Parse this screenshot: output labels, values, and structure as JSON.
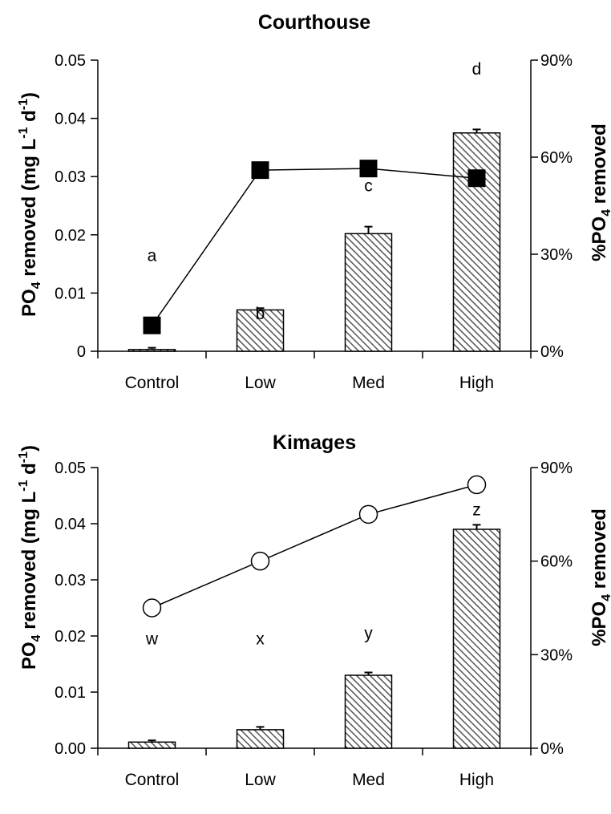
{
  "chart_data": [
    {
      "type": "bar",
      "title": "Courthouse",
      "categories": [
        "Control",
        "Low",
        "Med",
        "High"
      ],
      "ylabel_left": "PO4 removed (mg L-1 d-1)",
      "ylabel_left_parts": {
        "a": "PO",
        "sub": "4",
        "b": " removed (mg L",
        "sup1": "-1",
        "c": " d",
        "sup2": "-1",
        "d": ")"
      },
      "ylabel_right": "%PO4 removed",
      "ylabel_right_parts": {
        "a": "%PO",
        "sub": "4",
        "b": " removed"
      },
      "ylim_left": [
        0,
        0.05
      ],
      "yticks_left": [
        "0",
        "0.01",
        "0.02",
        "0.03",
        "0.04",
        "0.05"
      ],
      "ylim_right": [
        0,
        90
      ],
      "yticks_right": [
        "0%",
        "30%",
        "60%",
        "90%"
      ],
      "series": [
        {
          "values": [
            0.0003,
            0.0071,
            0.0202,
            0.0375
          ],
          "errors": [
            0.0003,
            0.0003,
            0.0012,
            0.0006
          ],
          "axis": "left",
          "style": "hatched-bar"
        },
        {
          "values": [
            8,
            56,
            56.5,
            53.5
          ],
          "axis": "right",
          "style": "line-filled-square"
        }
      ],
      "letters": [
        "a",
        "b",
        "c",
        "d"
      ],
      "letter_values": [
        0.0155,
        0.0055,
        0.0275,
        0.0475
      ]
    },
    {
      "type": "bar",
      "title": "Kimages",
      "categories": [
        "Control",
        "Low",
        "Med",
        "High"
      ],
      "ylabel_left": "PO4 removed (mg L-1 d-1)",
      "ylabel_left_parts": {
        "a": "PO",
        "sub": "4",
        "b": " removed (mg L",
        "sup1": "-1",
        "c": " d",
        "sup2": "-1",
        "d": ")"
      },
      "ylabel_right": "%PO4 removed",
      "ylabel_right_parts": {
        "a": "%PO",
        "sub": "4",
        "b": " removed"
      },
      "ylim_left": [
        0,
        0.05
      ],
      "yticks_left": [
        "0.00",
        "0.01",
        "0.02",
        "0.03",
        "0.04",
        "0.05"
      ],
      "ylim_right": [
        0,
        90
      ],
      "yticks_right": [
        "0%",
        "30%",
        "60%",
        "90%"
      ],
      "series": [
        {
          "values": [
            0.0011,
            0.0033,
            0.013,
            0.039
          ],
          "errors": [
            0.0003,
            0.0005,
            0.0005,
            0.0008
          ],
          "axis": "left",
          "style": "hatched-bar"
        },
        {
          "values": [
            45,
            60,
            75,
            84.5
          ],
          "axis": "right",
          "style": "line-open-circle"
        }
      ],
      "letters": [
        "w",
        "x",
        "y",
        "z"
      ],
      "letter_values": [
        0.0185,
        0.0185,
        0.0195,
        0.0415
      ]
    }
  ]
}
